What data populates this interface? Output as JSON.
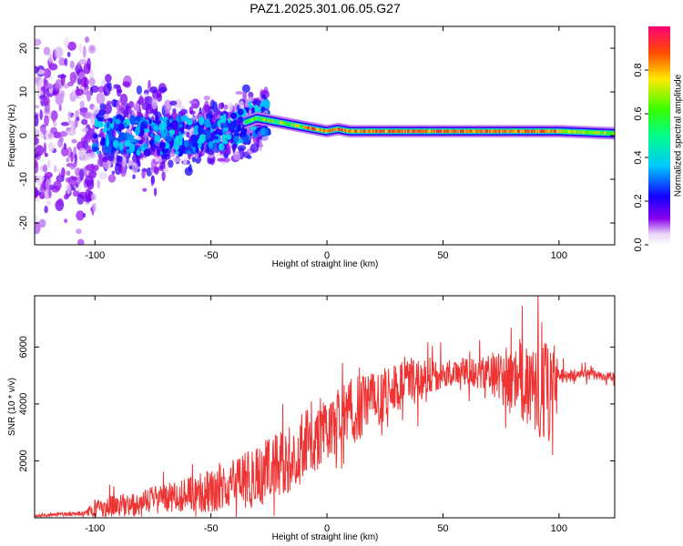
{
  "title": "PAZ1.2025.301.06.05.G27",
  "chart_data": [
    {
      "type": "heatmap",
      "name": "spectrogram",
      "xlabel": "Height of straight line (km)",
      "ylabel": "Frequency (Hz)",
      "xlim": [
        -126,
        124
      ],
      "ylim": [
        -25,
        25
      ],
      "x_ticks": [
        -100,
        -50,
        0,
        50,
        100
      ],
      "y_ticks": [
        -20,
        -10,
        0,
        10,
        20
      ],
      "colorbar": {
        "label": "Normalized spectral amplitude",
        "range": [
          0,
          1
        ],
        "ticks": [
          "0.0",
          "0.2",
          "0.4",
          "0.6",
          "0.8"
        ]
      },
      "ridge": {
        "x": [
          -100,
          -80,
          -60,
          -40,
          -35,
          -30,
          -20,
          -10,
          -5,
          0,
          5,
          10,
          30,
          50,
          70,
          90,
          100,
          110,
          124
        ],
        "freq_hz": [
          0,
          0,
          0,
          1,
          3,
          4,
          3,
          2,
          1.5,
          1,
          1.5,
          1,
          1,
          1,
          1,
          1,
          1,
          0.8,
          0.5
        ]
      }
    },
    {
      "type": "line",
      "name": "snr",
      "xlabel": "Height of straight line (km)",
      "ylabel": "SNR (10 * v/v)",
      "xlim": [
        -126,
        124
      ],
      "ylim": [
        0,
        7800
      ],
      "x_ticks": [
        -100,
        -50,
        0,
        50,
        100
      ],
      "y_ticks": [
        2000,
        4000,
        6000
      ],
      "color": "#ee3333",
      "envelope": {
        "x": [
          -126,
          -105,
          -100,
          -80,
          -60,
          -50,
          -40,
          -30,
          -20,
          -10,
          0,
          5,
          10,
          20,
          30,
          40,
          50,
          60,
          70,
          80,
          90,
          98,
          100,
          110,
          124
        ],
        "mean": [
          80,
          150,
          300,
          550,
          800,
          950,
          1200,
          1500,
          1900,
          2500,
          3100,
          3500,
          3700,
          4100,
          4600,
          4900,
          5050,
          5150,
          5050,
          4900,
          4600,
          4300,
          5000,
          5050,
          4950
        ],
        "spread": [
          50,
          80,
          350,
          450,
          600,
          750,
          900,
          1100,
          1200,
          1300,
          1100,
          1200,
          1300,
          1000,
          900,
          800,
          500,
          500,
          700,
          1400,
          1700,
          1900,
          300,
          200,
          150
        ]
      }
    }
  ]
}
